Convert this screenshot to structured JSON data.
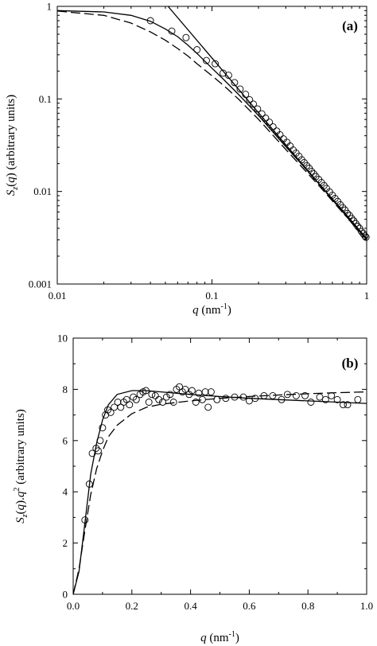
{
  "chart_data": [
    {
      "type": "scatter",
      "panel_label": "(a)",
      "xlabel": {
        "italic": "q",
        "rest": " (nm",
        "sup": "-1",
        "end": ")"
      },
      "ylabel": {
        "italic": "S",
        "sub": "z",
        "rest": "(",
        "italic2": "q",
        "end": ") (arbitrary units)"
      },
      "xscale": "log",
      "yscale": "log",
      "xlim": [
        0.01,
        1
      ],
      "ylim": [
        0.001,
        1
      ],
      "x_ticks": [
        {
          "value": 0.01,
          "label": "0.01"
        },
        {
          "value": 0.1,
          "label": "0.1"
        },
        {
          "value": 1,
          "label": "1"
        }
      ],
      "y_ticks": [
        {
          "value": 0.001,
          "label": "0.001"
        },
        {
          "value": 0.01,
          "label": "0.01"
        },
        {
          "value": 0.1,
          "label": "0.1"
        },
        {
          "value": 1,
          "label": "1"
        }
      ],
      "grid": false,
      "legend": "none",
      "points": [
        [
          0.04,
          0.7
        ],
        [
          0.055,
          0.54
        ],
        [
          0.068,
          0.46
        ],
        [
          0.08,
          0.34
        ],
        [
          0.092,
          0.26
        ],
        [
          0.105,
          0.24
        ],
        [
          0.118,
          0.19
        ],
        [
          0.128,
          0.18
        ],
        [
          0.14,
          0.15
        ],
        [
          0.152,
          0.128
        ],
        [
          0.165,
          0.112
        ],
        [
          0.175,
          0.098
        ],
        [
          0.185,
          0.088
        ],
        [
          0.197,
          0.078
        ],
        [
          0.21,
          0.069
        ],
        [
          0.222,
          0.062
        ],
        [
          0.235,
          0.056
        ],
        [
          0.248,
          0.05
        ],
        [
          0.262,
          0.045
        ],
        [
          0.275,
          0.041
        ],
        [
          0.29,
          0.037
        ],
        [
          0.305,
          0.034
        ],
        [
          0.32,
          0.031
        ],
        [
          0.335,
          0.028
        ],
        [
          0.35,
          0.026
        ],
        [
          0.365,
          0.024
        ],
        [
          0.38,
          0.022
        ],
        [
          0.395,
          0.0205
        ],
        [
          0.41,
          0.019
        ],
        [
          0.425,
          0.0178
        ],
        [
          0.44,
          0.0165
        ],
        [
          0.455,
          0.0155
        ],
        [
          0.47,
          0.0145
        ],
        [
          0.49,
          0.0135
        ],
        [
          0.51,
          0.0125
        ],
        [
          0.53,
          0.0116
        ],
        [
          0.55,
          0.0108
        ],
        [
          0.575,
          0.0099
        ],
        [
          0.6,
          0.0091
        ],
        [
          0.625,
          0.0084
        ],
        [
          0.65,
          0.0078
        ],
        [
          0.675,
          0.0072
        ],
        [
          0.7,
          0.0067
        ],
        [
          0.725,
          0.0063
        ],
        [
          0.75,
          0.0058
        ],
        [
          0.775,
          0.0055
        ],
        [
          0.8,
          0.0051
        ],
        [
          0.825,
          0.0048
        ],
        [
          0.85,
          0.0045
        ],
        [
          0.875,
          0.0042
        ],
        [
          0.9,
          0.004
        ],
        [
          0.925,
          0.0037
        ],
        [
          0.95,
          0.0035
        ],
        [
          0.975,
          0.0033
        ],
        [
          0.99,
          0.0032
        ]
      ],
      "curves": [
        {
          "style": "solid",
          "points": [
            [
              0.01,
              0.9
            ],
            [
              0.02,
              0.87
            ],
            [
              0.03,
              0.8
            ],
            [
              0.04,
              0.69
            ],
            [
              0.05,
              0.57
            ],
            [
              0.06,
              0.47
            ],
            [
              0.07,
              0.38
            ],
            [
              0.08,
              0.31
            ],
            [
              0.1,
              0.215
            ],
            [
              0.12,
              0.16
            ],
            [
              0.15,
              0.11
            ],
            [
              0.2,
              0.066
            ],
            [
              0.3,
              0.0305
            ],
            [
              0.5,
              0.0118
            ],
            [
              0.7,
              0.0062
            ],
            [
              1.0,
              0.0031
            ]
          ]
        },
        {
          "style": "dashed",
          "points": [
            [
              0.01,
              0.89
            ],
            [
              0.02,
              0.8
            ],
            [
              0.03,
              0.66
            ],
            [
              0.04,
              0.53
            ],
            [
              0.05,
              0.43
            ],
            [
              0.06,
              0.35
            ],
            [
              0.07,
              0.29
            ],
            [
              0.08,
              0.24
            ],
            [
              0.1,
              0.178
            ],
            [
              0.12,
              0.138
            ],
            [
              0.15,
              0.098
            ],
            [
              0.2,
              0.06
            ],
            [
              0.3,
              0.0285
            ],
            [
              0.5,
              0.0112
            ],
            [
              0.7,
              0.0059
            ],
            [
              1.0,
              0.0031
            ]
          ]
        },
        {
          "style": "thin-solid",
          "points": [
            [
              0.052,
              1.0
            ],
            [
              1.0,
              0.003
            ]
          ]
        }
      ]
    },
    {
      "type": "scatter",
      "panel_label": "(b)",
      "xlabel": {
        "italic": "q",
        "rest": " (nm",
        "sup": "-1",
        "end": ")"
      },
      "ylabel": {
        "italic": "S",
        "sub": "z",
        "rest": "(",
        "italic2": "q",
        "end": ").",
        "italic3": "q",
        "sup": "2",
        "end2": " (arbitrary units)"
      },
      "xscale": "linear",
      "yscale": "linear",
      "xlim": [
        0.0,
        1.0
      ],
      "ylim": [
        0,
        10
      ],
      "x_ticks": [
        {
          "value": 0.0,
          "label": "0.0"
        },
        {
          "value": 0.2,
          "label": "0.2"
        },
        {
          "value": 0.4,
          "label": "0.4"
        },
        {
          "value": 0.6,
          "label": "0.6"
        },
        {
          "value": 0.8,
          "label": "0.8"
        },
        {
          "value": 1.0,
          "label": "1.0"
        }
      ],
      "y_ticks": [
        {
          "value": 0,
          "label": "0"
        },
        {
          "value": 2,
          "label": "2"
        },
        {
          "value": 4,
          "label": "4"
        },
        {
          "value": 6,
          "label": "6"
        },
        {
          "value": 8,
          "label": "8"
        },
        {
          "value": 10,
          "label": "10"
        }
      ],
      "grid": false,
      "legend": "none",
      "points": [
        [
          0.04,
          2.9
        ],
        [
          0.055,
          4.3
        ],
        [
          0.065,
          5.5
        ],
        [
          0.078,
          5.7
        ],
        [
          0.085,
          5.6
        ],
        [
          0.092,
          6.0
        ],
        [
          0.1,
          6.5
        ],
        [
          0.11,
          7.0
        ],
        [
          0.118,
          7.2
        ],
        [
          0.128,
          7.1
        ],
        [
          0.14,
          7.3
        ],
        [
          0.152,
          7.5
        ],
        [
          0.162,
          7.3
        ],
        [
          0.172,
          7.5
        ],
        [
          0.182,
          7.6
        ],
        [
          0.192,
          7.4
        ],
        [
          0.205,
          7.7
        ],
        [
          0.215,
          7.6
        ],
        [
          0.228,
          7.8
        ],
        [
          0.238,
          7.9
        ],
        [
          0.248,
          7.95
        ],
        [
          0.258,
          7.5
        ],
        [
          0.268,
          7.8
        ],
        [
          0.28,
          7.75
        ],
        [
          0.292,
          7.6
        ],
        [
          0.305,
          7.5
        ],
        [
          0.318,
          7.7
        ],
        [
          0.33,
          7.8
        ],
        [
          0.342,
          7.5
        ],
        [
          0.352,
          8.0
        ],
        [
          0.362,
          8.1
        ],
        [
          0.372,
          7.9
        ],
        [
          0.382,
          8.0
        ],
        [
          0.395,
          7.8
        ],
        [
          0.405,
          7.95
        ],
        [
          0.418,
          7.5
        ],
        [
          0.428,
          7.85
        ],
        [
          0.44,
          7.6
        ],
        [
          0.45,
          7.9
        ],
        [
          0.46,
          7.3
        ],
        [
          0.47,
          7.9
        ],
        [
          0.49,
          7.6
        ],
        [
          0.52,
          7.65
        ],
        [
          0.55,
          7.7
        ],
        [
          0.58,
          7.7
        ],
        [
          0.6,
          7.55
        ],
        [
          0.62,
          7.65
        ],
        [
          0.65,
          7.75
        ],
        [
          0.68,
          7.75
        ],
        [
          0.71,
          7.6
        ],
        [
          0.73,
          7.8
        ],
        [
          0.76,
          7.75
        ],
        [
          0.79,
          7.75
        ],
        [
          0.81,
          7.5
        ],
        [
          0.84,
          7.7
        ],
        [
          0.86,
          7.6
        ],
        [
          0.88,
          7.75
        ],
        [
          0.9,
          7.6
        ],
        [
          0.92,
          7.4
        ],
        [
          0.935,
          7.4
        ],
        [
          0.97,
          7.6
        ]
      ],
      "curves": [
        {
          "style": "solid",
          "points": [
            [
              0.0,
              0.0
            ],
            [
              0.02,
              0.9
            ],
            [
              0.04,
              2.8
            ],
            [
              0.06,
              4.7
            ],
            [
              0.08,
              5.9
            ],
            [
              0.1,
              6.8
            ],
            [
              0.12,
              7.4
            ],
            [
              0.15,
              7.8
            ],
            [
              0.2,
              7.95
            ],
            [
              0.25,
              7.95
            ],
            [
              0.3,
              7.9
            ],
            [
              0.4,
              7.8
            ],
            [
              0.5,
              7.72
            ],
            [
              0.6,
              7.65
            ],
            [
              0.7,
              7.6
            ],
            [
              0.8,
              7.55
            ],
            [
              0.9,
              7.5
            ],
            [
              1.0,
              7.45
            ]
          ]
        },
        {
          "style": "dashed",
          "points": [
            [
              0.0,
              0.0
            ],
            [
              0.02,
              1.0
            ],
            [
              0.04,
              2.5
            ],
            [
              0.06,
              3.9
            ],
            [
              0.08,
              4.9
            ],
            [
              0.1,
              5.6
            ],
            [
              0.12,
              6.15
            ],
            [
              0.15,
              6.6
            ],
            [
              0.2,
              7.05
            ],
            [
              0.25,
              7.3
            ],
            [
              0.3,
              7.42
            ],
            [
              0.4,
              7.55
            ],
            [
              0.5,
              7.65
            ],
            [
              0.6,
              7.72
            ],
            [
              0.7,
              7.78
            ],
            [
              0.8,
              7.83
            ],
            [
              0.9,
              7.87
            ],
            [
              1.0,
              7.9
            ]
          ]
        }
      ]
    }
  ]
}
